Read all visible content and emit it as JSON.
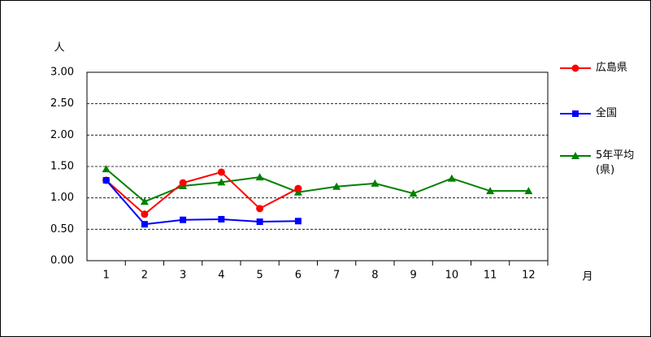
{
  "chart_data": {
    "type": "line",
    "y_unit": "人",
    "x_unit": "月",
    "categories": [
      "1",
      "2",
      "3",
      "4",
      "5",
      "6",
      "7",
      "8",
      "9",
      "10",
      "11",
      "12"
    ],
    "series": [
      {
        "name": "広島県",
        "color": "#ff0000",
        "marker": "circle",
        "values": [
          1.28,
          0.74,
          1.24,
          1.41,
          0.83,
          1.15,
          null,
          null,
          null,
          null,
          null,
          null
        ]
      },
      {
        "name": "全国",
        "color": "#0000ff",
        "marker": "square",
        "values": [
          1.28,
          0.58,
          0.65,
          0.66,
          0.62,
          0.63,
          null,
          null,
          null,
          null,
          null,
          null
        ]
      },
      {
        "name": "5年平均\n(県)",
        "color": "#008000",
        "marker": "triangle",
        "values": [
          1.46,
          0.94,
          1.19,
          1.25,
          1.33,
          1.09,
          1.18,
          1.23,
          1.07,
          1.31,
          1.11,
          1.11
        ]
      }
    ],
    "ylim": [
      0,
      3
    ],
    "yticks": [
      {
        "value": 0,
        "label": "0.00"
      },
      {
        "value": 0.5,
        "label": "0.50"
      },
      {
        "value": 1,
        "label": "1.00"
      },
      {
        "value": 1.5,
        "label": "1.50"
      },
      {
        "value": 2,
        "label": "2.00"
      },
      {
        "value": 2.5,
        "label": "2.50"
      },
      {
        "value": 3,
        "label": "3.00"
      }
    ],
    "grid": true,
    "legend": "right"
  }
}
